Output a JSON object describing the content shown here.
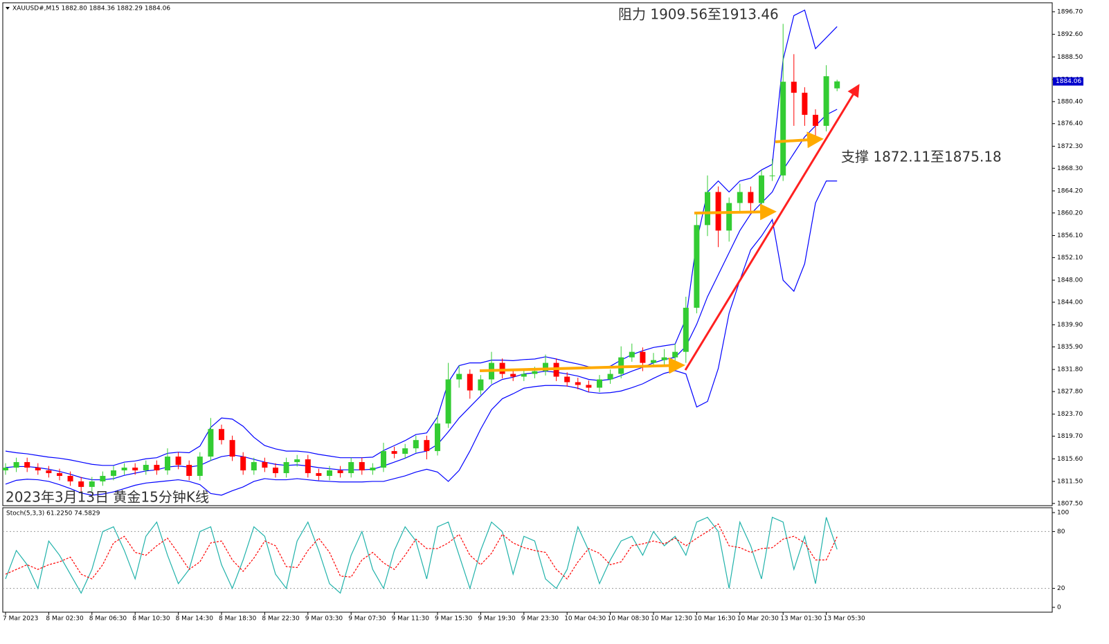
{
  "chart_data": [
    {
      "type": "candlestick",
      "symbol_header": "XAUUSD#,M15  1882.80 1884.36 1882.29 1884.06",
      "annotations": [
        "阻力 1909.56至1913.46",
        "支撑 1872.11至1875.18",
        "2023年3月13日 黄金15分钟K线"
      ],
      "categories": [
        "7 Mar 2023",
        null,
        null,
        null,
        "8 Mar 02:30",
        null,
        null,
        null,
        "8 Mar 06:30",
        null,
        null,
        null,
        "8 Mar 10:30",
        null,
        null,
        null,
        "8 Mar 14:30",
        null,
        null,
        null,
        "8 Mar 18:30",
        null,
        null,
        null,
        "8 Mar 22:30",
        null,
        null,
        null,
        "9 Mar 03:30",
        null,
        null,
        null,
        "9 Mar 07:30",
        null,
        null,
        null,
        "9 Mar 11:30",
        null,
        null,
        null,
        "9 Mar 15:30",
        null,
        null,
        null,
        "9 Mar 19:30",
        null,
        null,
        null,
        "9 Mar 23:30",
        null,
        null,
        null,
        "10 Mar 04:30",
        null,
        null,
        null,
        "10 Mar 08:30",
        null,
        null,
        null,
        "10 Mar 12:30",
        null,
        null,
        null,
        "10 Mar 16:30",
        null,
        null,
        null,
        "10 Mar 20:30",
        null,
        null,
        null,
        "13 Mar 01:30",
        null,
        null,
        null,
        "13 Mar 05:30",
        null
      ],
      "open": [
        1813.5,
        1814,
        1815,
        1814,
        1813.5,
        1813,
        1812.5,
        1811.5,
        1810.5,
        1811.5,
        1812.5,
        1813.5,
        1814,
        1813.5,
        1814.5,
        1813.5,
        1816,
        1814.5,
        1812.5,
        1816,
        1821,
        1819,
        1816,
        1813.5,
        1815,
        1814,
        1813,
        1815,
        1815.5,
        1813,
        1812.5,
        1813.5,
        1813,
        1815,
        1813.5,
        1814,
        1817,
        1816.5,
        1817.5,
        1819,
        1817,
        1822,
        1830,
        1831,
        1828,
        1830,
        1833,
        1831,
        1830.5,
        1831,
        1831.5,
        1833,
        1830.5,
        1829.5,
        1829,
        1828.5,
        1830,
        1831,
        1834,
        1835,
        1833,
        1833.5,
        1834,
        1835,
        1843,
        1858,
        1864,
        1857,
        1862,
        1864,
        1862,
        1867,
        1867,
        1884,
        1882,
        1878,
        1876,
        1882.8
      ],
      "high": [
        1814.8,
        1815.8,
        1815.8,
        1814.8,
        1814.3,
        1813.8,
        1813.3,
        1812.3,
        1812.3,
        1813.3,
        1814.3,
        1814.8,
        1814.8,
        1815.3,
        1815.3,
        1817.5,
        1816.8,
        1815.3,
        1816.8,
        1823,
        1821.8,
        1819.8,
        1816.8,
        1815.8,
        1815.8,
        1814.8,
        1815.8,
        1816.3,
        1816.3,
        1813.8,
        1814.3,
        1814.3,
        1815.8,
        1815.8,
        1814.8,
        1818.5,
        1817.8,
        1818.3,
        1819.8,
        1819.8,
        1823.5,
        1833,
        1832.5,
        1831.8,
        1830.8,
        1835,
        1833.8,
        1831.8,
        1831.8,
        1832.3,
        1834.5,
        1833.8,
        1831.3,
        1830.3,
        1829.8,
        1830.8,
        1831.8,
        1836,
        1836.5,
        1835.8,
        1834.8,
        1835.5,
        1836.5,
        1845,
        1860,
        1867,
        1865,
        1863,
        1865.5,
        1865,
        1868,
        1870,
        1894.5,
        1889,
        1883,
        1879,
        1887,
        1884.36
      ],
      "low": [
        1812.7,
        1813.2,
        1813.2,
        1812.7,
        1812.2,
        1811.7,
        1810.7,
        1809.7,
        1809.7,
        1810.7,
        1811.7,
        1812.7,
        1812.7,
        1812.7,
        1812.7,
        1812.7,
        1813.7,
        1811.7,
        1811.7,
        1815.2,
        1818.2,
        1815.2,
        1812.7,
        1812.7,
        1813.2,
        1812.2,
        1812.2,
        1814.2,
        1812.2,
        1811.7,
        1811.7,
        1812.2,
        1812.2,
        1812.7,
        1812.7,
        1813.2,
        1815.7,
        1815.7,
        1816.7,
        1815.5,
        1816.2,
        1821.2,
        1828.5,
        1826.5,
        1827.2,
        1829.2,
        1830.2,
        1829.7,
        1829.7,
        1830.2,
        1830.7,
        1829.7,
        1828.7,
        1828.2,
        1827.7,
        1827.7,
        1829.2,
        1830.2,
        1833.2,
        1831.5,
        1832.2,
        1832.7,
        1832.5,
        1833,
        1842,
        1856,
        1854,
        1855,
        1860.5,
        1860,
        1861,
        1866,
        1866,
        1876,
        1876,
        1873.5,
        1875,
        1882.29
      ],
      "close": [
        1814,
        1815,
        1814,
        1813.5,
        1813,
        1812.5,
        1811.5,
        1810.5,
        1811.5,
        1812.5,
        1813.5,
        1814,
        1813.5,
        1814.5,
        1813.5,
        1816,
        1814.5,
        1812.5,
        1816,
        1821,
        1819,
        1816,
        1813.5,
        1815,
        1814,
        1813,
        1815,
        1815.5,
        1813,
        1812.5,
        1813.5,
        1813,
        1815,
        1813.5,
        1814,
        1817,
        1816.5,
        1817.5,
        1819,
        1817,
        1822,
        1830,
        1831,
        1828,
        1830,
        1833,
        1831,
        1830.5,
        1831,
        1831.5,
        1833,
        1830.5,
        1829.5,
        1829,
        1828.5,
        1830,
        1831,
        1834,
        1835,
        1833,
        1833.5,
        1834,
        1835,
        1843,
        1858,
        1864,
        1857,
        1862,
        1864,
        1862,
        1867,
        1867,
        1884,
        1882,
        1878,
        1876,
        1885,
        1884.06
      ],
      "up_color": "#33cc33",
      "down_color": "#ff0000",
      "bands": {
        "color": "#0000ff",
        "upper": [
          1817,
          1816.7,
          1816.5,
          1816.2,
          1815.9,
          1815.7,
          1815.4,
          1815,
          1814.6,
          1814.4,
          1814.4,
          1815,
          1815.2,
          1815.6,
          1815.8,
          1816.6,
          1816.8,
          1816.7,
          1817.9,
          1821.3,
          1823,
          1822.8,
          1821.5,
          1819.5,
          1818,
          1817.4,
          1817,
          1817,
          1816.8,
          1816.4,
          1816.1,
          1815.8,
          1815.8,
          1815.8,
          1815.9,
          1817.1,
          1818,
          1818.9,
          1820,
          1820.3,
          1823.2,
          1829.5,
          1832.5,
          1833,
          1833,
          1833.5,
          1833.5,
          1833.4,
          1833.6,
          1833.7,
          1834.1,
          1833.7,
          1833.2,
          1832.8,
          1832.3,
          1832.1,
          1832.4,
          1833.5,
          1834.5,
          1835.2,
          1835.8,
          1836.1,
          1836.4,
          1841,
          1855,
          1864,
          1866,
          1864,
          1866,
          1866.5,
          1868,
          1869,
          1888,
          1896,
          1897,
          1890,
          1892,
          1894
        ],
        "middle": [
          1814,
          1814.2,
          1814.2,
          1814,
          1813.7,
          1813.3,
          1812.8,
          1812.2,
          1811.8,
          1811.8,
          1812,
          1812.6,
          1813,
          1813.4,
          1813.6,
          1814.1,
          1814.3,
          1814.1,
          1814.4,
          1815.3,
          1816,
          1816.3,
          1816,
          1815.5,
          1815,
          1814.6,
          1814.4,
          1814.5,
          1814.3,
          1814,
          1813.8,
          1813.6,
          1813.6,
          1813.6,
          1813.7,
          1814.3,
          1815,
          1815.7,
          1816.6,
          1817,
          1818.2,
          1820.5,
          1823,
          1825,
          1827,
          1829,
          1830,
          1830.4,
          1831,
          1831.2,
          1831.5,
          1831.3,
          1831,
          1830.6,
          1830,
          1829.8,
          1830,
          1830.7,
          1831.5,
          1832.2,
          1833,
          1833.6,
          1834,
          1836,
          1840,
          1845,
          1849,
          1853,
          1857,
          1860,
          1862,
          1864,
          1868,
          1871,
          1874,
          1876,
          1878,
          1879
        ],
        "lower": [
          1811,
          1811.7,
          1811.9,
          1811.8,
          1811.5,
          1810.9,
          1810.2,
          1809.4,
          1809,
          1809.2,
          1809.6,
          1810.2,
          1810.8,
          1811.2,
          1811.4,
          1811.6,
          1811.8,
          1811.5,
          1810.9,
          1809.3,
          1809,
          1809.8,
          1810.5,
          1811.5,
          1812,
          1811.8,
          1811.8,
          1812,
          1811.8,
          1811.6,
          1811.5,
          1811.4,
          1811.4,
          1811.4,
          1811.5,
          1811.5,
          1812,
          1812.5,
          1813.2,
          1813.7,
          1813.2,
          1811.5,
          1813.5,
          1817,
          1821,
          1824.5,
          1826.5,
          1827.4,
          1828.4,
          1828.7,
          1828.9,
          1828.9,
          1828.8,
          1828.4,
          1827.7,
          1827.5,
          1827.6,
          1827.9,
          1828.5,
          1829.2,
          1830.2,
          1831.1,
          1831.6,
          1831,
          1825,
          1826,
          1832,
          1842,
          1848,
          1853.5,
          1856,
          1859,
          1848,
          1846,
          1851,
          1862,
          1866,
          1866
        ]
      },
      "ylim": [
        1807.1,
        1898.2
      ],
      "yticks": [
        {
          "value": 1896.7,
          "label": "1896.70"
        },
        {
          "value": 1892.6,
          "label": "1892.60"
        },
        {
          "value": 1888.5,
          "label": "1888.50"
        },
        {
          "value": 1884.4,
          "label": "1884.40"
        },
        {
          "value": 1880.4,
          "label": "1880.40"
        },
        {
          "value": 1876.4,
          "label": "1876.40"
        },
        {
          "value": 1872.3,
          "label": "1872.30"
        },
        {
          "value": 1868.3,
          "label": "1868.30"
        },
        {
          "value": 1864.2,
          "label": "1864.20"
        },
        {
          "value": 1860.2,
          "label": "1860.20"
        },
        {
          "value": 1856.1,
          "label": "1856.10"
        },
        {
          "value": 1852.1,
          "label": "1852.10"
        },
        {
          "value": 1848,
          "label": "1848.00"
        },
        {
          "value": 1844,
          "label": "1844.00"
        },
        {
          "value": 1839.9,
          "label": "1839.90"
        },
        {
          "value": 1835.9,
          "label": "1835.90"
        },
        {
          "value": 1831.8,
          "label": "1831.80"
        },
        {
          "value": 1827.8,
          "label": "1827.80"
        },
        {
          "value": 1823.7,
          "label": "1823.70"
        },
        {
          "value": 1819.7,
          "label": "1819.70"
        },
        {
          "value": 1815.6,
          "label": "1815.60"
        },
        {
          "value": 1811.5,
          "label": "1811.50"
        },
        {
          "value": 1807.5,
          "label": "1807.50"
        }
      ],
      "grid": false
    },
    {
      "type": "line",
      "title": "Stoch(5,3,3) 61.2250 74.5829",
      "series": [
        {
          "color": "#20b2aa",
          "dashed": false,
          "values": [
            30,
            60,
            45,
            20,
            70,
            55,
            35,
            15,
            40,
            80,
            85,
            60,
            30,
            75,
            90,
            55,
            25,
            40,
            80,
            85,
            45,
            20,
            50,
            85,
            75,
            35,
            20,
            70,
            90,
            60,
            25,
            15,
            55,
            80,
            40,
            20,
            60,
            85,
            70,
            30,
            85,
            90,
            55,
            20,
            60,
            90,
            80,
            35,
            75,
            70,
            30,
            20,
            40,
            85,
            60,
            25,
            50,
            70,
            75,
            55,
            80,
            65,
            75,
            55,
            90,
            95,
            80,
            20,
            90,
            65,
            30,
            95,
            90,
            40,
            75,
            25,
            95,
            61.225
          ]
        },
        {
          "color": "#ff0000",
          "dashed": true,
          "values": [
            35,
            40,
            45,
            40,
            45,
            48,
            53,
            35,
            30,
            45,
            68,
            75,
            58,
            55,
            65,
            73,
            57,
            40,
            48,
            68,
            70,
            50,
            38,
            52,
            70,
            65,
            43,
            42,
            60,
            73,
            58,
            33,
            32,
            50,
            58,
            47,
            40,
            55,
            72,
            62,
            62,
            68,
            77,
            55,
            45,
            57,
            77,
            68,
            63,
            60,
            58,
            40,
            30,
            48,
            62,
            57,
            45,
            48,
            65,
            67,
            70,
            67,
            73,
            65,
            73,
            80,
            88,
            65,
            63,
            58,
            62,
            63,
            72,
            75,
            68,
            50,
            50,
            74.5829
          ]
        }
      ],
      "ylim": [
        -5.1,
        104.4
      ],
      "yticks": [
        0,
        20,
        80,
        100
      ],
      "levels": [
        20,
        80
      ]
    }
  ]
}
